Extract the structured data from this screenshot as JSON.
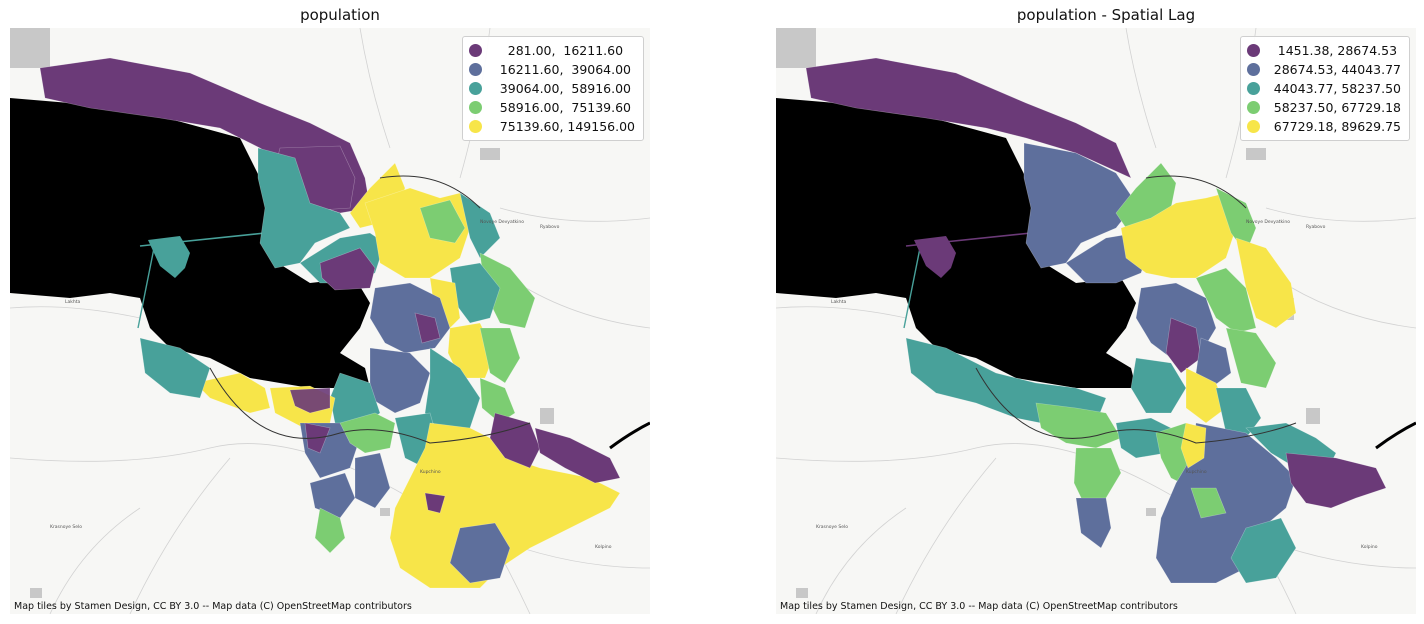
{
  "colors": {
    "class1": "#6b3a78",
    "class2": "#5e6f9c",
    "class3": "#48a19a",
    "class4": "#7ccd72",
    "class5": "#f7e549",
    "water": "#000000",
    "land": "#f7f7f5"
  },
  "maps": [
    {
      "title": "population",
      "legend": [
        {
          "label": "   281.00,  16211.60"
        },
        {
          "label": " 16211.60,  39064.00"
        },
        {
          "label": " 39064.00,  58916.00"
        },
        {
          "label": " 58916.00,  75139.60"
        },
        {
          "label": " 75139.60, 149156.00"
        }
      ],
      "attribution": "Map tiles by Stamen Design, CC BY 3.0 -- Map data (C) OpenStreetMap contributors",
      "places": [
        "Lakhta",
        "Krasnoye Selo",
        "Kupchino",
        "Kolpino",
        "Ryabovo",
        "Novoye Devyatkino"
      ]
    },
    {
      "title": "population - Spatial Lag",
      "legend": [
        {
          "label": " 1451.38, 28674.53"
        },
        {
          "label": "28674.53, 44043.77"
        },
        {
          "label": "44043.77, 58237.50"
        },
        {
          "label": "58237.50, 67729.18"
        },
        {
          "label": "67729.18, 89629.75"
        }
      ],
      "attribution": "Map tiles by Stamen Design, CC BY 3.0 -- Map data (C) OpenStreetMap contributors",
      "places": [
        "Lakhta",
        "Krasnoye Selo",
        "Kupchino",
        "Kolpino",
        "Ryabovo",
        "Novoye Devyatkino"
      ]
    }
  ]
}
